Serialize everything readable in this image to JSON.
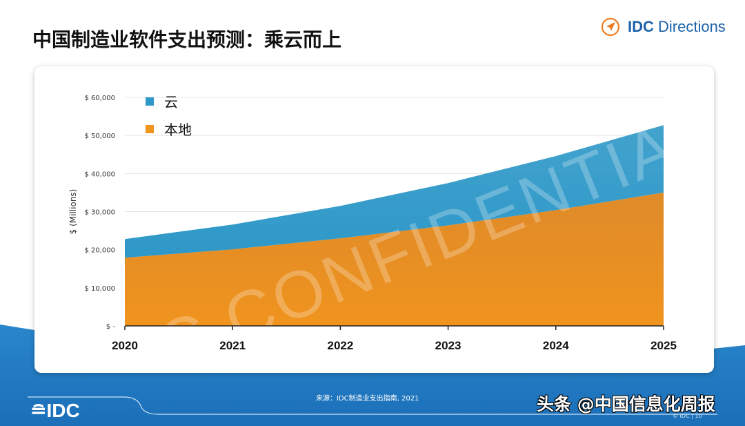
{
  "title": "中国制造业软件支出预测：乘云而上",
  "logo": {
    "brand_bold": "IDC",
    "brand_rest": " Directions",
    "icon": "compass-arrow-icon",
    "accent": "#f07c22"
  },
  "footer": {
    "source": "来源：IDC制造业支出指南, 2021",
    "logo_text": "IDC",
    "watermark": "头条 @中国信息化周报",
    "copyright": "© IDC |",
    "page_number": "10",
    "background": "#1f77c0"
  },
  "confidential_watermark": "IDC CONFIDENTIAL",
  "chart_data": {
    "type": "area",
    "stacked": true,
    "title": "",
    "xlabel": "",
    "ylabel": "$ (Millions)",
    "categories": [
      "2020",
      "2021",
      "2022",
      "2023",
      "2024",
      "2025"
    ],
    "ylim": [
      0,
      60000
    ],
    "yticks": [
      0,
      10000,
      20000,
      30000,
      40000,
      50000,
      60000
    ],
    "ytick_labels": [
      "$ -",
      "$ 10,000",
      "$ 20,000",
      "$ 30,000",
      "$ 40,000",
      "$ 50,000",
      "$ 60,000"
    ],
    "grid": true,
    "legend_position": "top-left",
    "series": [
      {
        "name": "本地",
        "color": "#f0941e",
        "values": [
          17900,
          20100,
          23000,
          26400,
          30400,
          35000
        ]
      },
      {
        "name": "云",
        "color": "#2e98c8",
        "values": [
          4900,
          6500,
          8500,
          11100,
          14200,
          17700
        ]
      }
    ]
  }
}
